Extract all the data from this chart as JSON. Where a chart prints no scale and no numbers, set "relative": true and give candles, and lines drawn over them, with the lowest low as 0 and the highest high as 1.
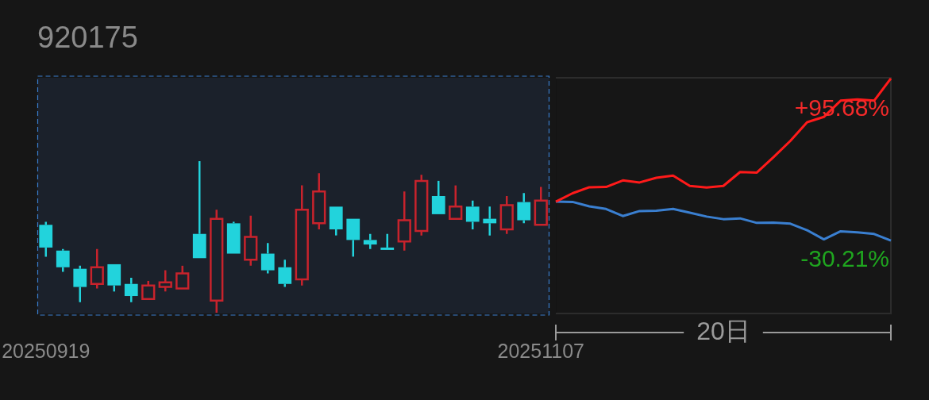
{
  "chart_data": [
    {
      "type": "candlestick",
      "title": "920175",
      "relative": true,
      "tick_labels": "x",
      "categories": [
        "20250919",
        null,
        null,
        null,
        null,
        null,
        null,
        null,
        null,
        null,
        null,
        null,
        null,
        null,
        null,
        null,
        null,
        null,
        null,
        null,
        null,
        null,
        null,
        null,
        null,
        null,
        null,
        null,
        null,
        "20251107"
      ],
      "series": [
        {
          "type": "candlestick",
          "ohlc": [
            [
              0.58,
              0.6,
              0.37,
              0.43
            ],
            [
              0.41,
              0.42,
              0.27,
              0.3
            ],
            [
              0.29,
              0.31,
              0.07,
              0.17
            ],
            [
              0.19,
              0.42,
              0.16,
              0.3
            ],
            [
              0.32,
              0.32,
              0.14,
              0.18
            ],
            [
              0.19,
              0.23,
              0.07,
              0.11
            ],
            [
              0.09,
              0.21,
              0.09,
              0.18
            ],
            [
              0.17,
              0.28,
              0.14,
              0.2
            ],
            [
              0.16,
              0.31,
              0.16,
              0.26
            ],
            [
              0.52,
              1.0,
              0.36,
              0.36
            ],
            [
              0.08,
              0.68,
              0,
              0.62
            ],
            [
              0.59,
              0.6,
              0.39,
              0.39
            ],
            [
              0.35,
              0.64,
              0.31,
              0.5
            ],
            [
              0.39,
              0.46,
              0.26,
              0.28
            ],
            [
              0.3,
              0.35,
              0.17,
              0.19
            ],
            [
              0.22,
              0.84,
              0.18,
              0.68
            ],
            [
              0.59,
              0.92,
              0.55,
              0.8
            ],
            [
              0.7,
              0.7,
              0.51,
              0.55
            ],
            [
              0.62,
              0.62,
              0.37,
              0.48
            ],
            [
              0.48,
              0.52,
              0.42,
              0.45
            ],
            [
              0.43,
              0.52,
              0.42,
              0.42
            ],
            [
              0.47,
              0.8,
              0.41,
              0.61
            ],
            [
              0.54,
              0.91,
              0.51,
              0.87
            ],
            [
              0.77,
              0.87,
              0.65,
              0.65
            ],
            [
              0.62,
              0.84,
              0.62,
              0.7
            ],
            [
              0.7,
              0.74,
              0.55,
              0.6
            ],
            [
              0.62,
              0.7,
              0.51,
              0.59
            ],
            [
              0.55,
              0.77,
              0.52,
              0.71
            ],
            [
              0.73,
              0.79,
              0.59,
              0.61
            ],
            [
              0.58,
              0.83,
              0.58,
              0.74
            ]
          ],
          "colors": [
            "#22d3dc",
            "#22d3dc",
            "#22d3dc",
            "#c8232c",
            "#22d3dc",
            "#22d3dc",
            "#c8232c",
            "#c8232c",
            "#c8232c",
            "#22d3dc",
            "#c8232c",
            "#22d3dc",
            "#c8232c",
            "#22d3dc",
            "#22d3dc",
            "#c8232c",
            "#c8232c",
            "#22d3dc",
            "#22d3dc",
            "#22d3dc",
            "#22d3dc",
            "#c8232c",
            "#c8232c",
            "#22d3dc",
            "#c8232c",
            "#22d3dc",
            "#22d3dc",
            "#c8232c",
            "#22d3dc",
            "#c8232c"
          ]
        }
      ],
      "bands": [
        {
          "axis": "x",
          "from": "20250919",
          "to": "20251107",
          "color": "#1b212b"
        }
      ]
    },
    {
      "type": "line",
      "tick_labels": false,
      "categories": [
        null,
        null,
        null,
        null,
        null,
        null,
        null,
        null,
        null,
        null,
        null,
        null,
        null,
        null,
        null,
        null,
        null,
        null,
        null,
        null,
        null
      ],
      "series": [
        {
          "color": "#ff1a1a",
          "values": [
            0,
            6.5,
            11.2,
            11.4,
            16.5,
            14.9,
            18.5,
            20.2,
            12.2,
            11.0,
            12.2,
            23.0,
            22.6,
            34.6,
            47.2,
            61.7,
            65.8,
            78.4,
            79.4,
            78.4,
            95.68
          ],
          "value_labels": [
            null,
            null,
            null,
            null,
            null,
            null,
            null,
            null,
            null,
            null,
            null,
            null,
            null,
            null,
            null,
            null,
            null,
            null,
            null,
            null,
            "+95.68%"
          ]
        },
        {
          "color": "#3a7fd0",
          "values": [
            0,
            -0.2,
            -3.7,
            -5.7,
            -11.2,
            -7.3,
            -7.1,
            -5.7,
            -8.6,
            -11.6,
            -13.6,
            -13.0,
            -16.5,
            -16.3,
            -17.1,
            -22.2,
            -29.3,
            -23.0,
            -23.8,
            -25.1,
            -30.21
          ],
          "value_labels": [
            null,
            null,
            null,
            null,
            null,
            null,
            null,
            null,
            null,
            null,
            null,
            null,
            null,
            null,
            null,
            null,
            null,
            null,
            null,
            null,
            "-30.21%"
          ]
        }
      ],
      "annotations": [
        "20日"
      ]
    }
  ]
}
